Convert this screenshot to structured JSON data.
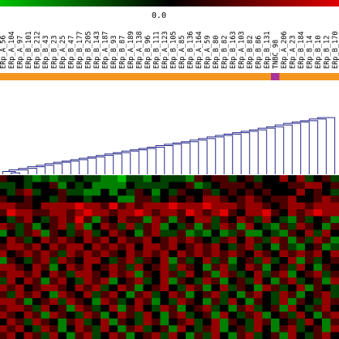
{
  "chart_data": {
    "type": "heatmap",
    "title": "",
    "color_scale": {
      "label": "0.0",
      "low_color": "#00c000",
      "mid_color": "#000000",
      "high_color": "#e00000"
    },
    "samples": [
      "ERp_A_56",
      "ERp_A_104",
      "ERp_A_97",
      "ERp_B_101",
      "ERp_B_212",
      "ERp_B_43",
      "ERp_B_23",
      "ERp_A_25",
      "ERp_B_47",
      "ERp_B_177",
      "ERp_B_205",
      "ERp_B_143",
      "ERp_A_187",
      "ERp_B_93",
      "ERp_B_87",
      "ERp_A_189",
      "ERp_A_138",
      "ERp_B_96",
      "ERp_B_111",
      "ERp_A_123",
      "ERp_B_105",
      "ERp_A_85",
      "ERp_B_136",
      "ERp_A_164",
      "ERp_A_59",
      "ERp_B_80",
      "ERp_B_82",
      "ERp_B_163",
      "ERp_A_103",
      "ERp_B_82",
      "ERp_B_86",
      "ERp_B_131",
      "TNBC_98",
      "ERp_A_206",
      "ERp_A_23",
      "ERp_B_184",
      "ERp_B_14",
      "ERp_B_10",
      "ERp_B_12",
      "ERp_B_170"
    ],
    "sample_colors": [
      "#f4961e",
      "#a8329c"
    ],
    "sample_groups": [
      0,
      0,
      0,
      0,
      0,
      0,
      0,
      0,
      0,
      0,
      0,
      0,
      0,
      0,
      0,
      0,
      0,
      0,
      0,
      0,
      0,
      0,
      0,
      0,
      0,
      0,
      0,
      0,
      0,
      0,
      0,
      0,
      1,
      0,
      0,
      0,
      0,
      0,
      0,
      0
    ],
    "rows": 24,
    "values": [
      [
        1,
        0,
        0,
        -1,
        -2,
        -1,
        -2,
        -1,
        -1,
        0,
        -1,
        -1,
        -2,
        -2,
        -3,
        -1,
        -1,
        -2,
        0,
        -1,
        -1,
        -1,
        -2,
        1,
        0,
        1,
        1,
        -1,
        0,
        1,
        -1,
        0,
        0,
        2,
        0,
        2,
        -1,
        0,
        1,
        -1
      ],
      [
        -1,
        -1,
        0,
        -1,
        0,
        0,
        1,
        -2,
        0,
        -1,
        0,
        -2,
        -2,
        -2,
        -2,
        0,
        -1,
        -1,
        -1,
        -1,
        0,
        0,
        1,
        -2,
        -1,
        0,
        1,
        1,
        1,
        0,
        1,
        0,
        0,
        0,
        1,
        1,
        2,
        2,
        0,
        1
      ],
      [
        0,
        -1,
        1,
        2,
        -1,
        0,
        0,
        1,
        -1,
        -1,
        -2,
        -2,
        0,
        -2,
        0,
        -1,
        1,
        0,
        -2,
        0,
        -1,
        1,
        0,
        0,
        1,
        -1,
        0,
        1,
        0,
        1,
        0,
        1,
        0,
        0,
        0,
        2,
        0,
        1,
        0,
        -1
      ],
      [
        1,
        0,
        0,
        1,
        0,
        0,
        -1,
        1,
        0,
        0,
        -1,
        0,
        0,
        0,
        -2,
        -2,
        1,
        1,
        -1,
        0,
        1,
        0,
        1,
        0,
        2,
        2,
        1,
        0,
        1,
        2,
        1,
        0,
        1,
        1,
        2,
        0,
        0,
        1,
        2,
        1
      ],
      [
        2,
        2,
        1,
        1,
        0,
        2,
        2,
        2,
        2,
        3,
        2,
        2,
        1,
        3,
        1,
        2,
        1,
        2,
        2,
        2,
        3,
        2,
        2,
        2,
        3,
        2,
        2,
        2,
        1,
        2,
        2,
        1,
        0,
        1,
        2,
        2,
        1,
        2,
        2,
        2
      ],
      [
        1,
        3,
        2,
        2,
        1,
        1,
        2,
        2,
        1,
        2,
        3,
        2,
        2,
        1,
        2,
        2,
        3,
        2,
        1,
        2,
        2,
        1,
        3,
        2,
        1,
        2,
        3,
        1,
        0,
        2,
        2,
        3,
        1,
        0,
        2,
        1,
        2,
        3,
        2,
        2
      ],
      [
        0,
        -1,
        1,
        2,
        0,
        -1,
        1,
        2,
        1,
        3,
        1,
        -2,
        1,
        0,
        2,
        1,
        1,
        -2,
        2,
        1,
        -2,
        1,
        0,
        2,
        2,
        -1,
        1,
        0,
        2,
        1,
        -1,
        2,
        0,
        -1,
        -2,
        1,
        -1,
        0,
        1,
        -2
      ],
      [
        2,
        1,
        -1,
        1,
        -2,
        0,
        1,
        2,
        -1,
        2,
        -2,
        0,
        2,
        1,
        -1,
        2,
        -1,
        1,
        2,
        -2,
        0,
        -1,
        1,
        -2,
        1,
        -1,
        2,
        1,
        -2,
        2,
        0,
        -1,
        -2,
        1,
        -1,
        2,
        1,
        0,
        -2,
        1
      ],
      [
        -2,
        0,
        -1,
        1,
        2,
        -2,
        1,
        0,
        -1,
        1,
        2,
        -1,
        0,
        2,
        1,
        0,
        -2,
        1,
        2,
        -1,
        -1,
        1,
        -2,
        -1,
        -2,
        0,
        -2,
        -1,
        1,
        -2,
        -2,
        0,
        -1,
        -2,
        1,
        0,
        2,
        -1,
        2,
        0
      ],
      [
        0,
        2,
        1,
        -1,
        0,
        2,
        1,
        2,
        1,
        0,
        2,
        1,
        2,
        0,
        2,
        1,
        1,
        2,
        0,
        1,
        2,
        1,
        2,
        1,
        0,
        -1,
        1,
        2,
        0,
        2,
        1,
        -1,
        2,
        1,
        -2,
        1,
        -1,
        2,
        1,
        -2
      ],
      [
        1,
        2,
        2,
        1,
        2,
        0,
        2,
        1,
        2,
        2,
        0,
        2,
        1,
        2,
        1,
        2,
        0,
        2,
        2,
        1,
        2,
        0,
        1,
        2,
        1,
        2,
        0,
        -1,
        1,
        2,
        -1,
        0,
        -2,
        1,
        -1,
        -2,
        0,
        1,
        -2,
        -1
      ],
      [
        2,
        0,
        1,
        2,
        1,
        2,
        1,
        -1,
        2,
        1,
        2,
        1,
        2,
        1,
        0,
        2,
        1,
        2,
        1,
        2,
        0,
        2,
        1,
        2,
        1,
        2,
        1,
        2,
        1,
        0,
        2,
        1,
        0,
        2,
        1,
        2,
        1,
        2,
        0,
        2
      ],
      [
        -2,
        1,
        0,
        -1,
        1,
        2,
        -1,
        2,
        1,
        0,
        2,
        2,
        0,
        -1,
        1,
        2,
        -1,
        1,
        0,
        2,
        -2,
        1,
        -1,
        0,
        2,
        -1,
        1,
        -2,
        0,
        1,
        -1,
        2,
        -1,
        0,
        2,
        -2,
        1,
        -1,
        0,
        1
      ],
      [
        2,
        2,
        1,
        0,
        2,
        1,
        -2,
        0,
        2,
        1,
        2,
        0,
        1,
        2,
        1,
        -1,
        2,
        0,
        1,
        2,
        -1,
        2,
        1,
        0,
        -2,
        1,
        2,
        -1,
        0,
        2,
        1,
        -2,
        0,
        1,
        -1,
        2,
        0,
        -2,
        1,
        0
      ],
      [
        1,
        2,
        2,
        1,
        2,
        0,
        2,
        1,
        -1,
        2,
        2,
        1,
        0,
        2,
        1,
        2,
        -2,
        1,
        0,
        2,
        1,
        -1,
        2,
        0,
        1,
        -2,
        2,
        1,
        -1,
        0,
        2,
        -1,
        1,
        2,
        -2,
        0,
        1,
        2,
        -1,
        1
      ],
      [
        -1,
        2,
        0,
        2,
        1,
        -2,
        1,
        2,
        0,
        -1,
        2,
        1,
        2,
        -2,
        0,
        1,
        2,
        -1,
        0,
        2,
        -2,
        1,
        0,
        -1,
        2,
        1,
        -2,
        0,
        1,
        -1,
        2,
        0,
        -2,
        1,
        2,
        -1,
        0,
        1,
        -2,
        2
      ],
      [
        2,
        1,
        2,
        0,
        1,
        2,
        2,
        1,
        0,
        2,
        1,
        2,
        -1,
        0,
        2,
        1,
        -2,
        0,
        1,
        2,
        0,
        -1,
        2,
        1,
        -2,
        0,
        2,
        -1,
        1,
        0,
        -2,
        2,
        1,
        -1,
        0,
        2,
        -2,
        1,
        0,
        -1
      ],
      [
        1,
        -1,
        2,
        1,
        2,
        0,
        -2,
        2,
        1,
        0,
        2,
        -1,
        1,
        2,
        0,
        -2,
        1,
        2,
        -1,
        0,
        2,
        1,
        -2,
        0,
        1,
        2,
        -1,
        0,
        -2,
        1,
        2,
        0,
        -1,
        2,
        1,
        -2,
        0,
        1,
        2,
        -1
      ],
      [
        2,
        2,
        1,
        -2,
        0,
        1,
        2,
        -1,
        2,
        1,
        0,
        -2,
        2,
        1,
        -1,
        0,
        2,
        1,
        -2,
        0,
        -1,
        2,
        1,
        0,
        -2,
        1,
        -1,
        2,
        0,
        -2,
        1,
        0,
        -1,
        2,
        -2,
        1,
        0,
        -1,
        2,
        1
      ],
      [
        1,
        2,
        2,
        1,
        -1,
        2,
        0,
        1,
        -2,
        2,
        1,
        -1,
        0,
        2,
        -2,
        1,
        2,
        0,
        -1,
        2,
        1,
        -2,
        0,
        1,
        2,
        -1,
        0,
        -2,
        1,
        2,
        -1,
        0,
        1,
        -2,
        2,
        0,
        -1,
        1,
        2,
        0
      ],
      [
        2,
        1,
        0,
        2,
        1,
        -2,
        2,
        1,
        0,
        -1,
        2,
        1,
        -2,
        0,
        2,
        1,
        -1,
        2,
        0,
        -2,
        1,
        2,
        -1,
        0,
        1,
        -2,
        2,
        0,
        -1,
        1,
        2,
        -2,
        0,
        1,
        -1,
        2,
        0,
        -2,
        1,
        2
      ],
      [
        0,
        2,
        1,
        -1,
        2,
        1,
        0,
        -2,
        1,
        2,
        -1,
        0,
        2,
        -2,
        1,
        0,
        -1,
        2,
        1,
        -2,
        0,
        1,
        2,
        -1,
        0,
        2,
        -2,
        1,
        0,
        -1,
        2,
        1,
        -2,
        0,
        1,
        -1,
        2,
        0,
        -2,
        1
      ],
      [
        2,
        1,
        2,
        0,
        -1,
        2,
        1,
        -2,
        0,
        2,
        1,
        -1,
        2,
        0,
        -2,
        1,
        2,
        -1,
        0,
        1,
        -2,
        2,
        0,
        -1,
        1,
        2,
        -2,
        0,
        1,
        -1,
        2,
        0,
        -2,
        1,
        2,
        -1,
        0,
        1,
        -2,
        2
      ],
      [
        1,
        2,
        0,
        2,
        1,
        -1,
        2,
        0,
        -2,
        1,
        2,
        -1,
        0,
        2,
        1,
        -2,
        0,
        1,
        2,
        -1,
        2,
        0,
        -2,
        1,
        -1,
        2,
        0,
        -2,
        1,
        2,
        -1,
        0,
        1,
        -2,
        2,
        0,
        -1,
        1,
        2,
        0
      ]
    ],
    "value_range": [
      -3,
      3
    ],
    "dendrogram": "column"
  }
}
